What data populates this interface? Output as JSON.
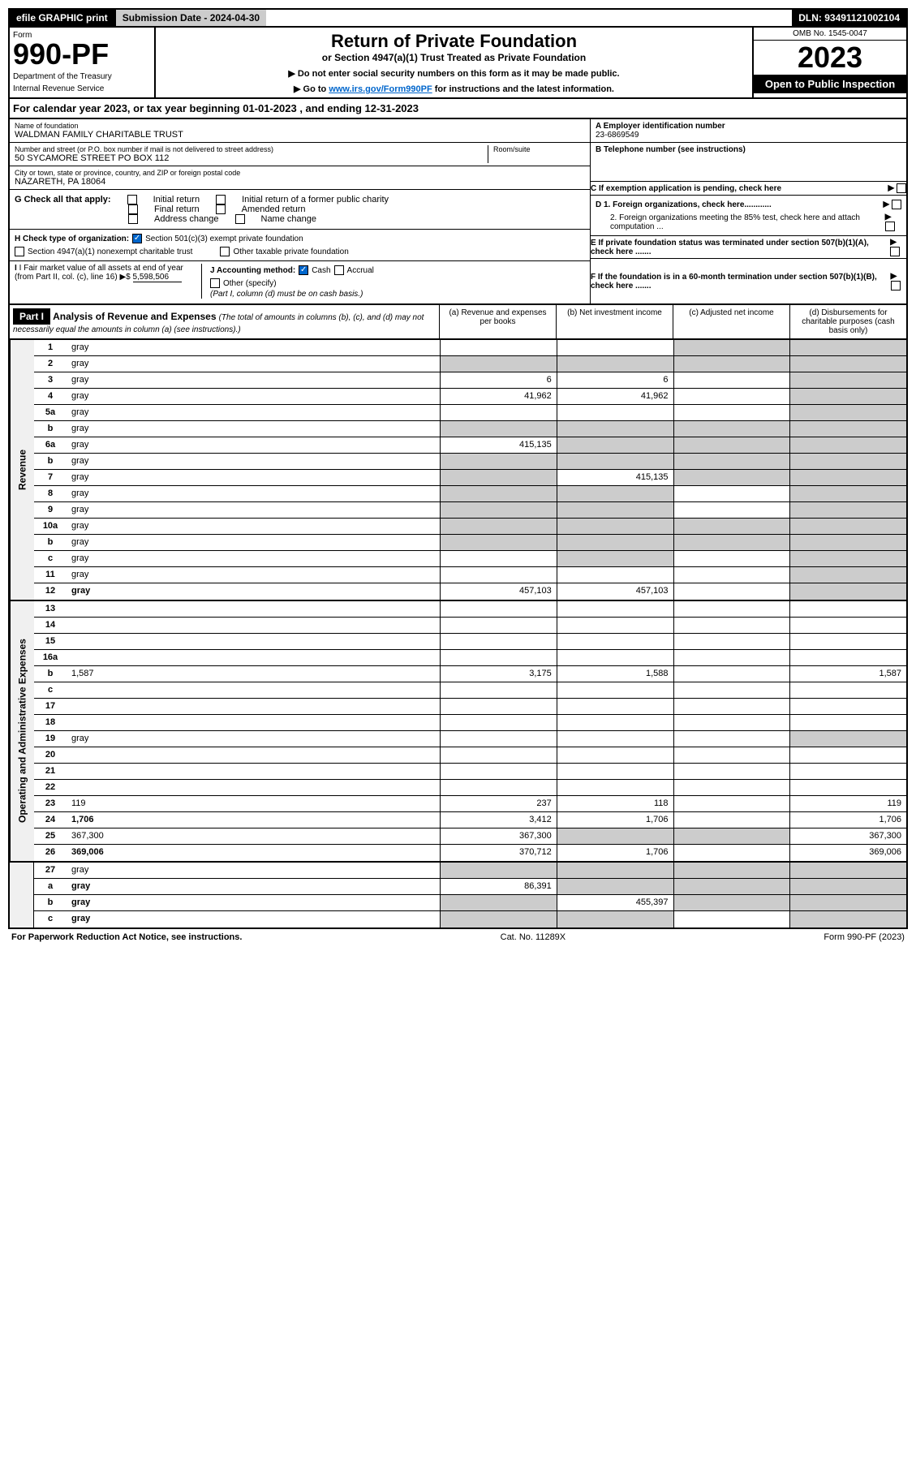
{
  "top": {
    "efile": "efile GRAPHIC print",
    "submission": "Submission Date - 2024-04-30",
    "dln": "DLN: 93491121002104"
  },
  "header": {
    "form_label": "Form",
    "form_number": "990-PF",
    "dept1": "Department of the Treasury",
    "dept2": "Internal Revenue Service",
    "title": "Return of Private Foundation",
    "subtitle": "or Section 4947(a)(1) Trust Treated as Private Foundation",
    "note1": "▶ Do not enter social security numbers on this form as it may be made public.",
    "note2_pre": "▶ Go to ",
    "note2_link": "www.irs.gov/Form990PF",
    "note2_post": " for instructions and the latest information.",
    "omb": "OMB No. 1545-0047",
    "year": "2023",
    "open": "Open to Public Inspection"
  },
  "cal_year": "For calendar year 2023, or tax year beginning 01-01-2023                           , and ending 12-31-2023",
  "info": {
    "name_label": "Name of foundation",
    "name": "WALDMAN FAMILY CHARITABLE TRUST",
    "addr_label": "Number and street (or P.O. box number if mail is not delivered to street address)",
    "addr": "50 SYCAMORE STREET PO BOX 112",
    "room_label": "Room/suite",
    "city_label": "City or town, state or province, country, and ZIP or foreign postal code",
    "city": "NAZARETH, PA  18064",
    "ein_label": "A Employer identification number",
    "ein": "23-6869549",
    "phone_label": "B Telephone number (see instructions)",
    "c_label": "C If exemption application is pending, check here",
    "d1_label": "D 1. Foreign organizations, check here............",
    "d2_label": "2. Foreign organizations meeting the 85% test, check here and attach computation ...",
    "e_label": "E  If private foundation status was terminated under section 507(b)(1)(A), check here .......",
    "f_label": "F  If the foundation is in a 60-month termination under section 507(b)(1)(B), check here .......",
    "g_label": "G Check all that apply:",
    "g_initial": "Initial return",
    "g_initial_former": "Initial return of a former public charity",
    "g_final": "Final return",
    "g_amended": "Amended return",
    "g_address": "Address change",
    "g_name": "Name change",
    "h_label": "H Check type of organization:",
    "h_501c3": "Section 501(c)(3) exempt private foundation",
    "h_4947": "Section 4947(a)(1) nonexempt charitable trust",
    "h_other": "Other taxable private foundation",
    "i_label": "I Fair market value of all assets at end of year (from Part II, col. (c), line 16)",
    "i_value": "5,598,506",
    "j_label": "J Accounting method:",
    "j_cash": "Cash",
    "j_accrual": "Accrual",
    "j_other": "Other (specify)",
    "j_note": "(Part I, column (d) must be on cash basis.)"
  },
  "part1": {
    "label": "Part I",
    "title": "Analysis of Revenue and Expenses",
    "note": "(The total of amounts in columns (b), (c), and (d) may not necessarily equal the amounts in column (a) (see instructions).)",
    "col_a": "(a)   Revenue and expenses per books",
    "col_b": "(b)   Net investment income",
    "col_c": "(c)   Adjusted net income",
    "col_d": "(d)   Disbursements for charitable purposes (cash basis only)"
  },
  "side_labels": {
    "revenue": "Revenue",
    "expenses": "Operating and Administrative Expenses"
  },
  "rows": [
    {
      "n": "1",
      "d": "gray",
      "a": "",
      "b": "",
      "c": "gray"
    },
    {
      "n": "2",
      "d": "gray",
      "a": "gray",
      "b": "gray",
      "c": "gray",
      "bold": false
    },
    {
      "n": "3",
      "d": "gray",
      "a": "6",
      "b": "6",
      "c": ""
    },
    {
      "n": "4",
      "d": "gray",
      "a": "41,962",
      "b": "41,962",
      "c": ""
    },
    {
      "n": "5a",
      "d": "gray",
      "a": "",
      "b": "",
      "c": ""
    },
    {
      "n": "b",
      "d": "gray",
      "a": "gray",
      "b": "gray",
      "c": "gray"
    },
    {
      "n": "6a",
      "d": "gray",
      "a": "415,135",
      "b": "gray",
      "c": "gray"
    },
    {
      "n": "b",
      "d": "gray",
      "a": "gray",
      "b": "gray",
      "c": "gray"
    },
    {
      "n": "7",
      "d": "gray",
      "a": "gray",
      "b": "415,135",
      "c": "gray"
    },
    {
      "n": "8",
      "d": "gray",
      "a": "gray",
      "b": "gray",
      "c": ""
    },
    {
      "n": "9",
      "d": "gray",
      "a": "gray",
      "b": "gray",
      "c": ""
    },
    {
      "n": "10a",
      "d": "gray",
      "a": "gray",
      "b": "gray",
      "c": "gray"
    },
    {
      "n": "b",
      "d": "gray",
      "a": "gray",
      "b": "gray",
      "c": "gray"
    },
    {
      "n": "c",
      "d": "gray",
      "a": "",
      "b": "gray",
      "c": ""
    },
    {
      "n": "11",
      "d": "gray",
      "a": "",
      "b": "",
      "c": ""
    },
    {
      "n": "12",
      "d": "gray",
      "a": "457,103",
      "b": "457,103",
      "c": "",
      "bold": true
    }
  ],
  "exp_rows": [
    {
      "n": "13",
      "d": "",
      "a": "",
      "b": "",
      "c": ""
    },
    {
      "n": "14",
      "d": "",
      "a": "",
      "b": "",
      "c": ""
    },
    {
      "n": "15",
      "d": "",
      "a": "",
      "b": "",
      "c": ""
    },
    {
      "n": "16a",
      "d": "",
      "a": "",
      "b": "",
      "c": ""
    },
    {
      "n": "b",
      "d": "1,587",
      "a": "3,175",
      "b": "1,588",
      "c": ""
    },
    {
      "n": "c",
      "d": "",
      "a": "",
      "b": "",
      "c": ""
    },
    {
      "n": "17",
      "d": "",
      "a": "",
      "b": "",
      "c": ""
    },
    {
      "n": "18",
      "d": "",
      "a": "",
      "b": "",
      "c": ""
    },
    {
      "n": "19",
      "d": "gray",
      "a": "",
      "b": "",
      "c": ""
    },
    {
      "n": "20",
      "d": "",
      "a": "",
      "b": "",
      "c": ""
    },
    {
      "n": "21",
      "d": "",
      "a": "",
      "b": "",
      "c": ""
    },
    {
      "n": "22",
      "d": "",
      "a": "",
      "b": "",
      "c": ""
    },
    {
      "n": "23",
      "d": "119",
      "a": "237",
      "b": "118",
      "c": ""
    },
    {
      "n": "24",
      "d": "1,706",
      "a": "3,412",
      "b": "1,706",
      "c": "",
      "bold": true
    },
    {
      "n": "25",
      "d": "367,300",
      "a": "367,300",
      "b": "gray",
      "c": "gray"
    },
    {
      "n": "26",
      "d": "369,006",
      "a": "370,712",
      "b": "1,706",
      "c": "",
      "bold": true
    }
  ],
  "bottom_rows": [
    {
      "n": "27",
      "d": "gray",
      "a": "gray",
      "b": "gray",
      "c": "gray"
    },
    {
      "n": "a",
      "d": "gray",
      "a": "86,391",
      "b": "gray",
      "c": "gray",
      "bold": true
    },
    {
      "n": "b",
      "d": "gray",
      "a": "gray",
      "b": "455,397",
      "c": "gray",
      "bold": true
    },
    {
      "n": "c",
      "d": "gray",
      "a": "gray",
      "b": "gray",
      "c": "",
      "bold": true
    }
  ],
  "footer": {
    "left": "For Paperwork Reduction Act Notice, see instructions.",
    "center": "Cat. No. 11289X",
    "right": "Form 990-PF (2023)"
  }
}
